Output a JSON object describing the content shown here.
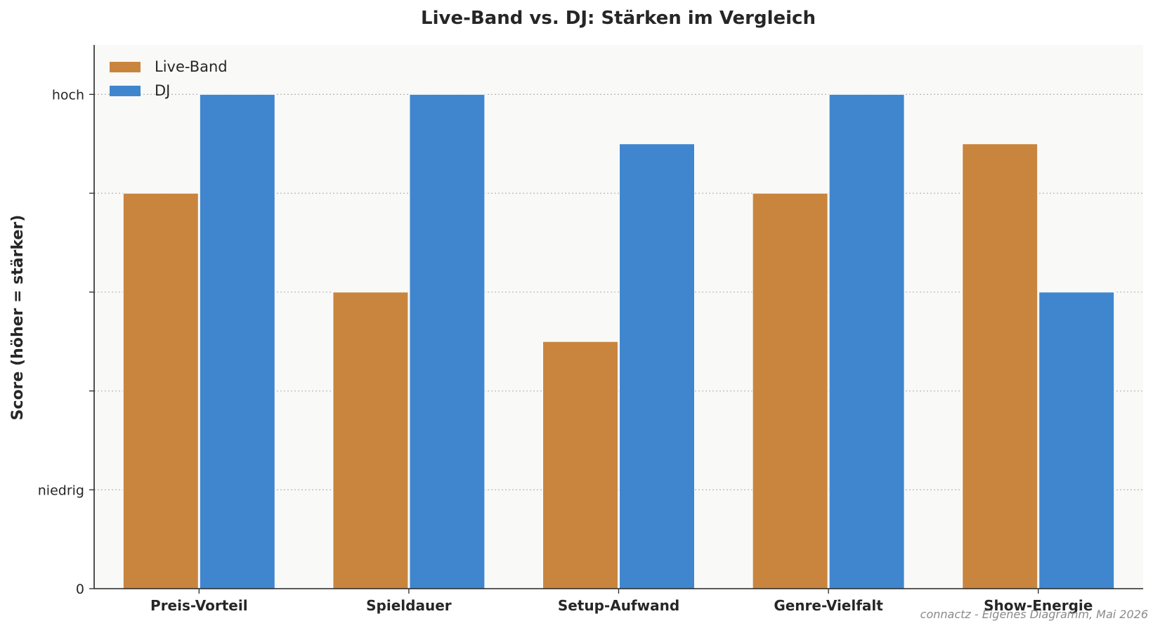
{
  "chart_data": {
    "type": "bar",
    "title": "Live-Band vs. DJ: Stärken im Vergleich",
    "xlabel": "",
    "ylabel": "Score (höher = stärker)",
    "categories": [
      "Preis-Vorteil",
      "Spieldauer",
      "Setup-Aufwand",
      "Genre-Vielfalt",
      "Show-Energie"
    ],
    "series": [
      {
        "name": "Live-Band",
        "color": "#c9853e",
        "values": [
          4,
          3,
          2.5,
          4,
          4.5
        ]
      },
      {
        "name": "DJ",
        "color": "#4086ce",
        "values": [
          5,
          5,
          4.5,
          5,
          3
        ]
      }
    ],
    "ylim": [
      0,
      5.5
    ],
    "yticks": [
      {
        "value": 0,
        "label": "0"
      },
      {
        "value": 1,
        "label": "niedrig"
      },
      {
        "value": 2,
        "label": ""
      },
      {
        "value": 3,
        "label": ""
      },
      {
        "value": 4,
        "label": ""
      },
      {
        "value": 5,
        "label": "hoch"
      }
    ],
    "grid": "horizontal dotted",
    "legend_position": "top-left",
    "plot_background": "#f9f9f7"
  },
  "footer": {
    "credit": "connactz - Eigenes Diagramm, Mai 2026"
  }
}
